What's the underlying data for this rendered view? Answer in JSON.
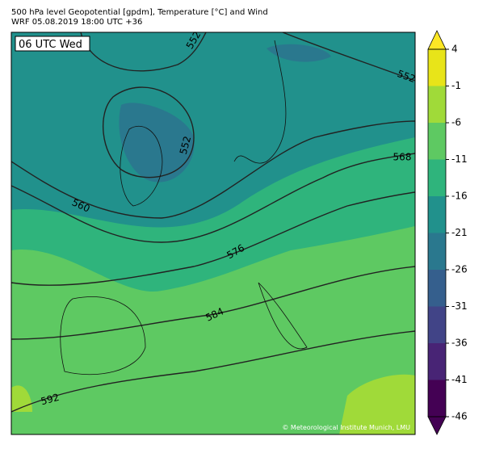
{
  "header": {
    "title": "500 hPa level Geopotential [gpdm], Temperature [°C] and Wind",
    "subtitle": "WRF 05.08.2019 18:00 UTC +36"
  },
  "map": {
    "time_label": "06 UTC Wed",
    "contour_labels": [
      552,
      552,
      552,
      560,
      568,
      576,
      584,
      592
    ],
    "credit": "© Meteorological Institute Munich, LMU"
  },
  "colorbar": {
    "ticks": [
      4,
      -1,
      -6,
      -11,
      -16,
      -21,
      -26,
      -31,
      -36,
      -41,
      -46
    ],
    "colors": [
      "#e8e419",
      "#a0da39",
      "#5ec962",
      "#2fb47c",
      "#21918c",
      "#2a788e",
      "#355f8d",
      "#414487",
      "#482475",
      "#440154"
    ],
    "extend_colors": [
      "#fde725",
      "#440154"
    ]
  }
}
